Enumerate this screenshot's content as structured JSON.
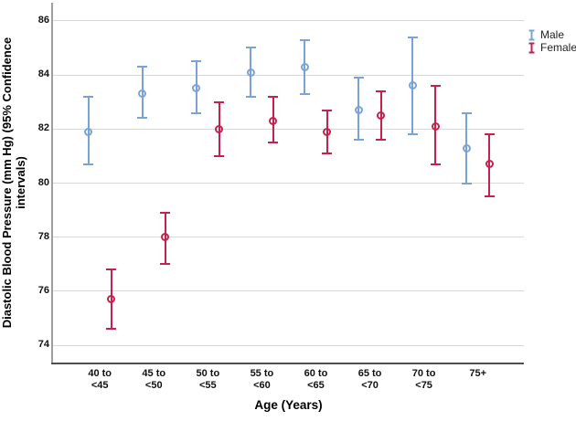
{
  "chart_data": {
    "type": "scatter",
    "subtype": "clustered_error_bar",
    "title": "",
    "xlabel": "Age (Years)",
    "ylabel": "Diastolic Blood Pressure (mm Hg) (95% Confidence intervals)",
    "ylabel_lines": [
      "Diastolic Blood Pressure (mm Hg) (95% Confidence",
      "intervals)"
    ],
    "categories": [
      "40 to <45",
      "45 to <50",
      "50 to <55",
      "55 to <60",
      "60 to <65",
      "65 to <70",
      "70 to <75",
      "75+"
    ],
    "category_label_lines": [
      [
        "40 to",
        "<45"
      ],
      [
        "45 to",
        "<50"
      ],
      [
        "50 to",
        "<55"
      ],
      [
        "55 to",
        "<60"
      ],
      [
        "60 to",
        "<65"
      ],
      [
        "65 to",
        "<70"
      ],
      [
        "70 to",
        "<75"
      ],
      [
        "75+"
      ]
    ],
    "yticks": [
      86,
      84,
      82,
      80,
      78,
      76,
      74
    ],
    "ylim": [
      73.3,
      86.7
    ],
    "grid": "horizontal-gridlines",
    "legend_position": "top-right-outside",
    "series": [
      {
        "name": "Male",
        "color": "#79a3d6",
        "means": [
          81.9,
          83.3,
          83.5,
          84.1,
          84.3,
          82.7,
          83.6,
          81.3
        ],
        "ci_low": [
          80.7,
          82.4,
          82.6,
          83.2,
          83.3,
          81.6,
          81.8,
          80.0
        ],
        "ci_high": [
          83.2,
          84.3,
          84.5,
          85.0,
          85.3,
          83.9,
          85.4,
          82.6
        ]
      },
      {
        "name": "Female",
        "color": "#c2234c",
        "means": [
          75.7,
          78.0,
          82.0,
          82.3,
          81.9,
          82.5,
          82.1,
          80.7
        ],
        "ci_low": [
          74.6,
          77.0,
          81.0,
          81.5,
          81.1,
          81.6,
          80.7,
          79.5
        ],
        "ci_high": [
          76.8,
          78.9,
          83.0,
          83.2,
          82.7,
          83.4,
          83.6,
          81.8
        ]
      }
    ]
  },
  "colors": {
    "gridline": "#d8d8d8",
    "y_axis_line": "#9e9e9e",
    "x_axis_line": "#4f4f4f",
    "text": "#000000"
  }
}
